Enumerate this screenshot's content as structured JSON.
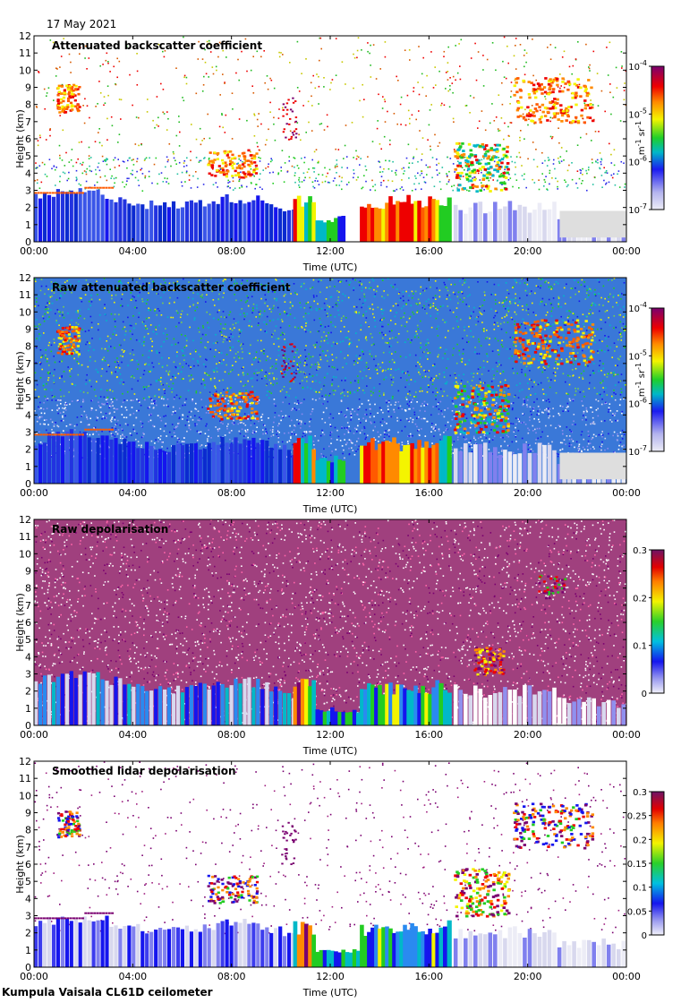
{
  "date": "17 May 2021",
  "footer": "Kumpula Vaisala CL61D ceilometer",
  "colors": {
    "background": "#ffffff",
    "frame": "#000000",
    "clear_low_noise": "#d8d8ee"
  },
  "chart_data": [
    {
      "type": "heatmap",
      "title": "Attenuated backscatter coefficient",
      "xlabel": "Time (UTC)",
      "ylabel": "Height (km)",
      "x_ticks": [
        "00:00",
        "04:00",
        "08:00",
        "12:00",
        "16:00",
        "20:00",
        "00:00"
      ],
      "xlim_hours": [
        0,
        24
      ],
      "ylim_km": [
        0,
        12
      ],
      "y_ticks": [
        "0",
        "1",
        "2",
        "3",
        "4",
        "5",
        "6",
        "7",
        "8",
        "9",
        "10",
        "11",
        "12"
      ],
      "colorbar": {
        "scale": "log",
        "unit_main": "m",
        "unit_exp1": "-1",
        "unit_mid": " sr",
        "unit_exp2": "-1",
        "ticks": [
          {
            "base": "10",
            "exp": "-4",
            "value": 0.0001
          },
          {
            "base": "10",
            "exp": "-5",
            "value": 1e-05
          },
          {
            "base": "10",
            "exp": "-6",
            "value": 1e-06
          },
          {
            "base": "10",
            "exp": "-7",
            "value": 1e-07
          }
        ],
        "range": [
          1e-07,
          0.0001
        ]
      }
    },
    {
      "type": "heatmap",
      "title": "Raw attenuated backscatter coefficient",
      "xlabel": "Time (UTC)",
      "ylabel": "Height (km)",
      "x_ticks": [
        "00:00",
        "04:00",
        "08:00",
        "12:00",
        "16:00",
        "20:00",
        "00:00"
      ],
      "xlim_hours": [
        0,
        24
      ],
      "ylim_km": [
        0,
        12
      ],
      "y_ticks": [
        "0",
        "1",
        "2",
        "3",
        "4",
        "5",
        "6",
        "7",
        "8",
        "9",
        "10",
        "11",
        "12"
      ],
      "colorbar": {
        "scale": "log",
        "unit_main": "m",
        "unit_exp1": "-1",
        "unit_mid": " sr",
        "unit_exp2": "-1",
        "ticks": [
          {
            "base": "10",
            "exp": "-4",
            "value": 0.0001
          },
          {
            "base": "10",
            "exp": "-5",
            "value": 1e-05
          },
          {
            "base": "10",
            "exp": "-6",
            "value": 1e-06
          },
          {
            "base": "10",
            "exp": "-7",
            "value": 1e-07
          }
        ],
        "range": [
          1e-07,
          0.0001
        ]
      }
    },
    {
      "type": "heatmap",
      "title": "Raw depolarisation",
      "xlabel": "Time (UTC)",
      "ylabel": "Height (km)",
      "x_ticks": [
        "00:00",
        "04:00",
        "08:00",
        "12:00",
        "16:00",
        "20:00",
        "00:00"
      ],
      "xlim_hours": [
        0,
        24
      ],
      "ylim_km": [
        0,
        12
      ],
      "y_ticks": [
        "0",
        "1",
        "2",
        "3",
        "4",
        "5",
        "6",
        "7",
        "8",
        "9",
        "10",
        "11",
        "12"
      ],
      "colorbar": {
        "scale": "linear",
        "ticks": [
          {
            "label": "0.3",
            "value": 0.3
          },
          {
            "label": "0.2",
            "value": 0.2
          },
          {
            "label": "0.1",
            "value": 0.1
          },
          {
            "label": "0",
            "value": 0
          }
        ],
        "range": [
          0,
          0.3
        ]
      }
    },
    {
      "type": "heatmap",
      "title": "Smoothed lidar depolarisation",
      "xlabel": "Time (UTC)",
      "ylabel": "Height (km)",
      "x_ticks": [
        "00:00",
        "04:00",
        "08:00",
        "12:00",
        "16:00",
        "20:00",
        "00:00"
      ],
      "xlim_hours": [
        0,
        24
      ],
      "ylim_km": [
        0,
        12
      ],
      "y_ticks": [
        "0",
        "1",
        "2",
        "3",
        "4",
        "5",
        "6",
        "7",
        "8",
        "9",
        "10",
        "11",
        "12"
      ],
      "colorbar": {
        "scale": "linear",
        "ticks": [
          {
            "label": "0.3",
            "value": 0.3
          },
          {
            "label": "0.25",
            "value": 0.25
          },
          {
            "label": "0.2",
            "value": 0.2
          },
          {
            "label": "0.15",
            "value": 0.15
          },
          {
            "label": "0.1",
            "value": 0.1
          },
          {
            "label": "0.05",
            "value": 0.05
          },
          {
            "label": "0",
            "value": 0
          }
        ],
        "range": [
          0,
          0.3
        ]
      }
    }
  ]
}
